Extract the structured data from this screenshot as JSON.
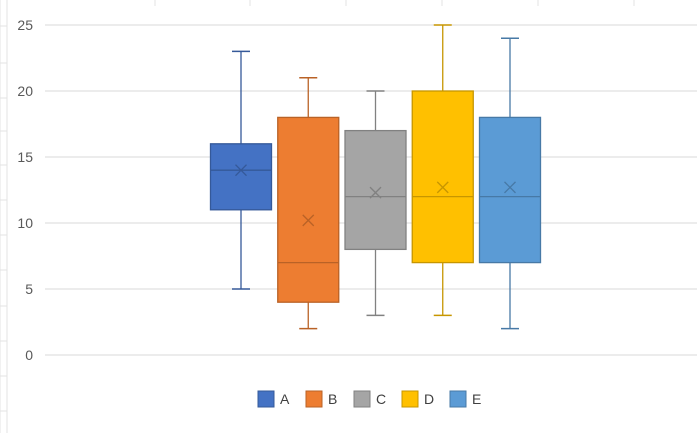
{
  "chart_data": {
    "type": "box",
    "title": "",
    "xlabel": "",
    "ylabel": "",
    "ylim": [
      0,
      25
    ],
    "yticks": [
      "0",
      "5",
      "10",
      "15",
      "20",
      "25"
    ],
    "grid": true,
    "legend_position": "bottom",
    "series": [
      {
        "name": "A",
        "color": "#4472C4",
        "min": 5,
        "q1": 11,
        "median": 14,
        "q3": 16,
        "max": 23,
        "mean": 14
      },
      {
        "name": "B",
        "color": "#ED7D31",
        "min": 2,
        "q1": 4,
        "median": 7,
        "q3": 18,
        "max": 21,
        "mean": 10.2
      },
      {
        "name": "C",
        "color": "#A5A5A5",
        "min": 3,
        "q1": 8,
        "median": 12,
        "q3": 17,
        "max": 20,
        "mean": 12.3
      },
      {
        "name": "D",
        "color": "#FFC000",
        "min": 3,
        "q1": 7,
        "median": 12,
        "q3": 20,
        "max": 25,
        "mean": 12.7
      },
      {
        "name": "E",
        "color": "#5B9BD5",
        "min": 2,
        "q1": 7,
        "median": 12,
        "q3": 18,
        "max": 24,
        "mean": 12.7
      }
    ]
  }
}
